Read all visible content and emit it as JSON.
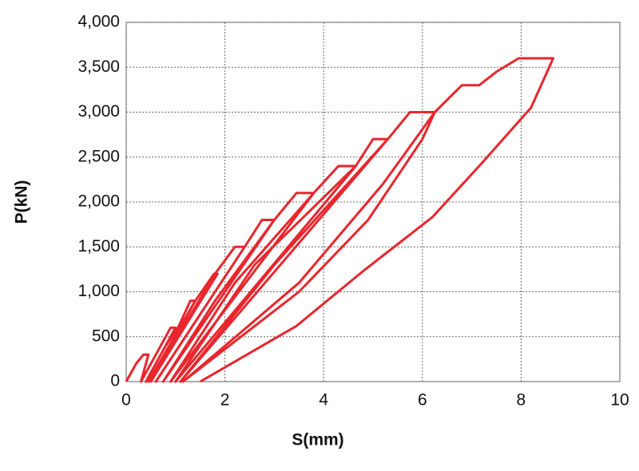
{
  "chart_data": {
    "type": "line",
    "x_label": "S(mm)",
    "y_label": "P(kN)",
    "xlim": [
      0,
      10
    ],
    "xticks": [
      0,
      2,
      4,
      6,
      8,
      10
    ],
    "ylim": [
      0,
      4000
    ],
    "yticks": [
      0,
      500,
      {
        "value": 1000,
        "label": "1,000"
      },
      {
        "value": 1500,
        "label": "1,500"
      },
      {
        "value": 2000,
        "label": "2,000"
      },
      {
        "value": 2500,
        "label": "2,500"
      },
      {
        "value": 3000,
        "label": "3,000"
      },
      {
        "value": 3500,
        "label": "3,500"
      },
      {
        "value": 4000,
        "label": "4,000"
      }
    ],
    "grid": true,
    "series": [
      {
        "color": "#e8262d",
        "x": [
          0,
          0.2,
          0.35,
          0.45,
          0.3,
          0.6,
          0.9,
          1.0,
          0.4,
          0.8,
          1.05,
          1.3,
          1.4,
          0.45,
          1.0,
          1.4,
          1.78,
          1.85,
          0.5,
          1.2,
          1.8,
          2.2,
          2.4,
          0.6,
          1.5,
          2.4,
          2.75,
          3.0,
          0.75,
          1.8,
          3.0,
          3.45,
          3.8,
          0.9,
          2.2,
          3.8,
          4.3,
          4.65,
          1.0,
          2.6,
          4.65,
          5.0,
          5.3,
          1.1,
          3.0,
          5.3,
          5.75,
          6.25,
          6.0,
          4.9,
          3.5,
          1.15,
          3.5,
          5.2,
          6.25,
          6.8,
          7.15,
          7.5,
          7.95,
          8.65,
          8.2,
          7.2,
          6.2,
          4.8,
          3.45,
          1.5
        ],
        "values": [
          0,
          200,
          300,
          300,
          0,
          300,
          600,
          600,
          0,
          400,
          600,
          900,
          900,
          0,
          500,
          900,
          1200,
          1200,
          0,
          650,
          1200,
          1500,
          1500,
          0,
          750,
          1500,
          1800,
          1800,
          0,
          900,
          1800,
          2100,
          2100,
          0,
          1100,
          2100,
          2400,
          2400,
          0,
          1300,
          2400,
          2700,
          2700,
          0,
          1300,
          2700,
          3000,
          3000,
          2700,
          1800,
          1000,
          0,
          1100,
          2200,
          3000,
          3300,
          3300,
          3450,
          3600,
          3600,
          3050,
          2430,
          1830,
          1230,
          620,
          0
        ]
      }
    ]
  }
}
